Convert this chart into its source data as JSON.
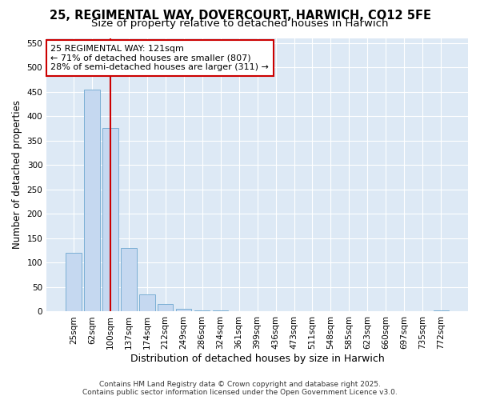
{
  "title": "25, REGIMENTAL WAY, DOVERCOURT, HARWICH, CO12 5FE",
  "subtitle": "Size of property relative to detached houses in Harwich",
  "xlabel": "Distribution of detached houses by size in Harwich",
  "ylabel": "Number of detached properties",
  "categories": [
    "25sqm",
    "62sqm",
    "100sqm",
    "137sqm",
    "174sqm",
    "212sqm",
    "249sqm",
    "286sqm",
    "324sqm",
    "361sqm",
    "399sqm",
    "436sqm",
    "473sqm",
    "511sqm",
    "548sqm",
    "585sqm",
    "623sqm",
    "660sqm",
    "697sqm",
    "735sqm",
    "772sqm"
  ],
  "values": [
    120,
    455,
    375,
    130,
    35,
    15,
    5,
    2,
    2,
    0,
    0,
    0,
    0,
    0,
    0,
    0,
    0,
    0,
    0,
    0,
    2
  ],
  "bar_color": "#c5d8f0",
  "bar_edge_color": "#7bafd4",
  "background_color": "#dde9f5",
  "grid_color": "#ffffff",
  "vline_x": 2.0,
  "vline_color": "#cc0000",
  "annotation_text": "25 REGIMENTAL WAY: 121sqm\n← 71% of detached houses are smaller (807)\n28% of semi-detached houses are larger (311) →",
  "annotation_box_facecolor": "#ffffff",
  "annotation_box_edgecolor": "#cc0000",
  "ylim": [
    0,
    560
  ],
  "yticks": [
    0,
    50,
    100,
    150,
    200,
    250,
    300,
    350,
    400,
    450,
    500,
    550
  ],
  "footer1": "Contains HM Land Registry data © Crown copyright and database right 2025.",
  "footer2": "Contains public sector information licensed under the Open Government Licence v3.0.",
  "title_fontsize": 10.5,
  "subtitle_fontsize": 9.5,
  "xlabel_fontsize": 9,
  "ylabel_fontsize": 8.5,
  "tick_fontsize": 7.5,
  "annotation_fontsize": 8,
  "footer_fontsize": 6.5
}
